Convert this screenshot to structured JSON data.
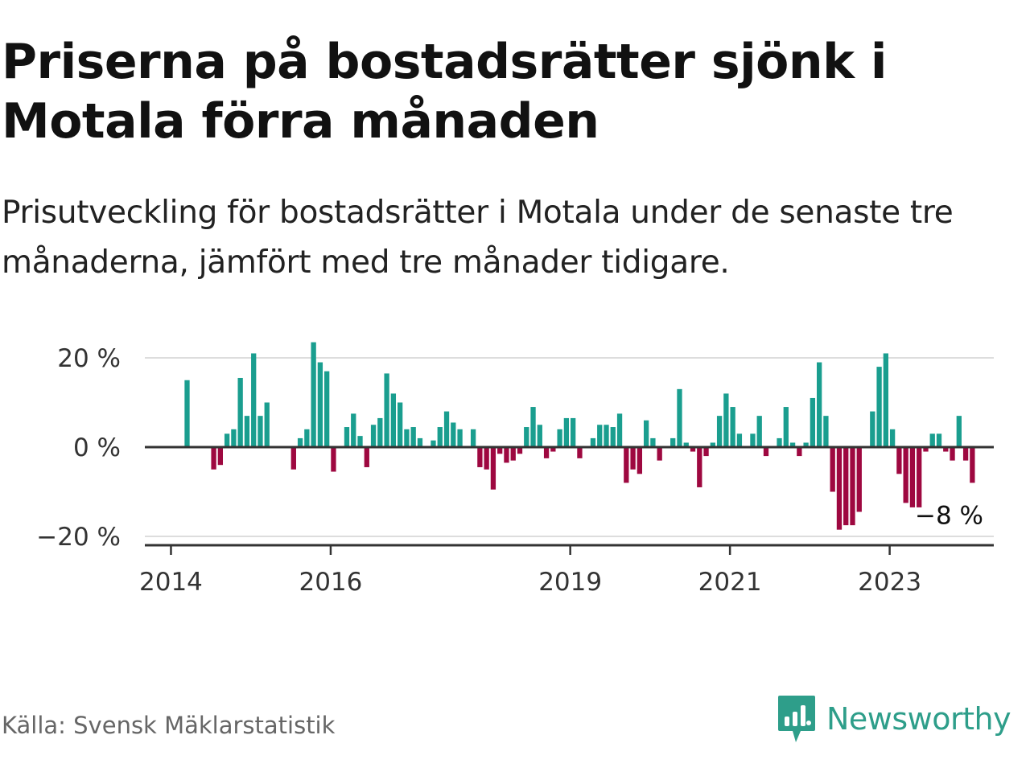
{
  "header": {
    "title": "Priserna på bostadsrätter sjönk i Motala förra månaden",
    "subtitle": "Prisutveckling för bostadsrätter i Motala under de senaste tre månaderna, jämfört med tre månader tidigare."
  },
  "footer": {
    "source": "Källa: Svensk Mäklarstatistik",
    "logo_text": "Newsworthy",
    "logo_icon": "bar-chart-speech-bubble-icon"
  },
  "colors": {
    "positive": "#1a9e8f",
    "negative": "#9e0840",
    "axis": "#333333",
    "grid": "#dddddd",
    "logo": "#2e9e8a"
  },
  "chart_data": {
    "type": "bar",
    "title": "",
    "xlabel": "",
    "ylabel": "",
    "ylim": [
      -20,
      20
    ],
    "yticks": [
      {
        "value": 20,
        "label": "20 %"
      },
      {
        "value": 0,
        "label": "0 %"
      },
      {
        "value": -20,
        "label": "−20 %"
      }
    ],
    "xticks": [
      {
        "value": 2014.0,
        "label": "2014"
      },
      {
        "value": 2016.0,
        "label": "2016"
      },
      {
        "value": 2019.0,
        "label": "2019"
      },
      {
        "value": 2021.0,
        "label": "2021"
      },
      {
        "value": 2023.0,
        "label": "2023"
      }
    ],
    "x_start": "2014-03",
    "x_end": "2023-10",
    "grid": true,
    "last_label": "−8 %",
    "values": [
      15,
      null,
      null,
      null,
      -5,
      -4,
      3,
      4,
      15.5,
      7,
      21,
      7,
      10,
      null,
      null,
      null,
      -5,
      2,
      4,
      23.5,
      19,
      17,
      -5.5,
      0,
      4.5,
      7.5,
      2.5,
      -4.5,
      5,
      6.5,
      16.5,
      12,
      10,
      4,
      4.5,
      2,
      null,
      1.5,
      4.5,
      8,
      5.5,
      4,
      null,
      4,
      -4.5,
      -5,
      -9.5,
      -1.5,
      -3.5,
      -3,
      -1.5,
      4.5,
      9,
      5,
      -2.5,
      -1,
      4,
      6.5,
      6.5,
      -2.5,
      null,
      2,
      5,
      5,
      4.5,
      7.5,
      -8,
      -5,
      -6,
      6,
      2,
      -3,
      null,
      2,
      13,
      1,
      -1,
      -9,
      -2,
      1,
      7,
      12,
      9,
      3,
      null,
      3,
      7,
      -2,
      null,
      2,
      9,
      1,
      -2,
      1,
      11,
      19,
      7,
      -10,
      -18.5,
      -17.5,
      -17.5,
      -14.5,
      null,
      8,
      18,
      21,
      4,
      -6,
      -12.5,
      -13.5,
      -13.5,
      -1,
      3,
      3,
      -1,
      -3,
      7,
      -3,
      -8
    ]
  }
}
